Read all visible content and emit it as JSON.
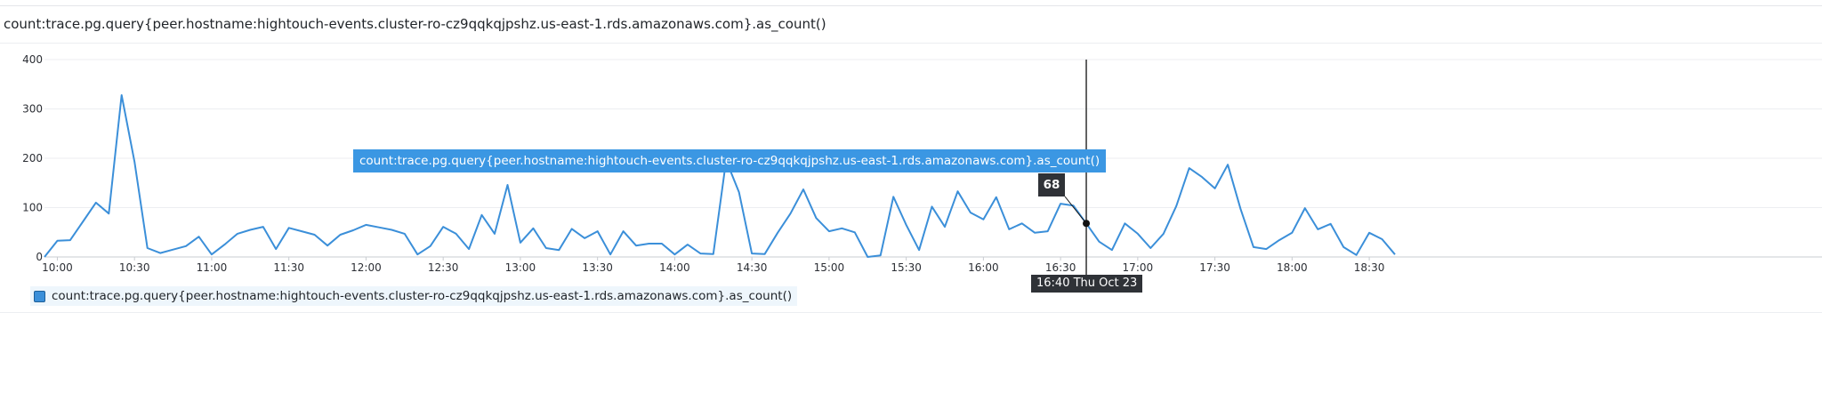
{
  "title": "count:trace.pg.query{peer.hostname:hightouch-events.cluster-ro-cz9qqkqjpshz.us-east-1.rds.amazonaws.com}.as_count()",
  "colors": {
    "series": "#3b8fd9",
    "tooltip": "#3b97e3",
    "dark": "#2f3237"
  },
  "tooltip": {
    "series": "count:trace.pg.query{peer.hostname:hightouch-events.cluster-ro-cz9qqkqjpshz.us-east-1.rds.amazonaws.com}.as_count()",
    "value": "68",
    "time_label": "16:40 Thu Oct 23",
    "hover_time": "16:40"
  },
  "legend": {
    "items": [
      {
        "label": "count:trace.pg.query{peer.hostname:hightouch-events.cluster-ro-cz9qqkqjpshz.us-east-1.rds.amazonaws.com}.as_count()",
        "color": "#3b8fd9"
      }
    ]
  },
  "chart_data": {
    "type": "line",
    "title": "",
    "xlabel": "",
    "ylabel": "",
    "ylim": [
      0,
      400
    ],
    "y_ticks": [
      "0",
      "100",
      "200",
      "300",
      "400"
    ],
    "x_ticks": [
      "10:00",
      "10:30",
      "11:00",
      "11:30",
      "12:00",
      "12:30",
      "13:00",
      "13:30",
      "14:00",
      "14:30",
      "15:00",
      "15:30",
      "16:00",
      "16:30",
      "17:00",
      "17:30",
      "18:00",
      "18:30"
    ],
    "x_range": [
      "09:55",
      "18:40"
    ],
    "interval_minutes": 5,
    "grid": true,
    "legend": "bottom-left",
    "series": [
      {
        "name": "count:trace.pg.query{peer.hostname:hightouch-events.cluster-ro-cz9qqkqjpshz.us-east-1.rds.amazonaws.com}.as_count()",
        "start": "09:55",
        "values": [
          0,
          33,
          34,
          72,
          110,
          88,
          328,
          193,
          18,
          8,
          15,
          22,
          41,
          5,
          25,
          47,
          55,
          61,
          16,
          59,
          52,
          45,
          23,
          45,
          54,
          65,
          60,
          55,
          47,
          5,
          22,
          61,
          47,
          16,
          85,
          47,
          146,
          29,
          58,
          18,
          14,
          57,
          38,
          52,
          5,
          52,
          23,
          27,
          27,
          5,
          25,
          7,
          6,
          196,
          131,
          7,
          6,
          49,
          88,
          137,
          79,
          52,
          58,
          50,
          0,
          3,
          122,
          65,
          14,
          102,
          61,
          133,
          90,
          76,
          121,
          56,
          68,
          49,
          52,
          108,
          104,
          68,
          31,
          14,
          68,
          47,
          18,
          47,
          103,
          180,
          162,
          139,
          187,
          97,
          20,
          16,
          34,
          49,
          99,
          56,
          67,
          20,
          4,
          49,
          36,
          5
        ]
      }
    ]
  }
}
